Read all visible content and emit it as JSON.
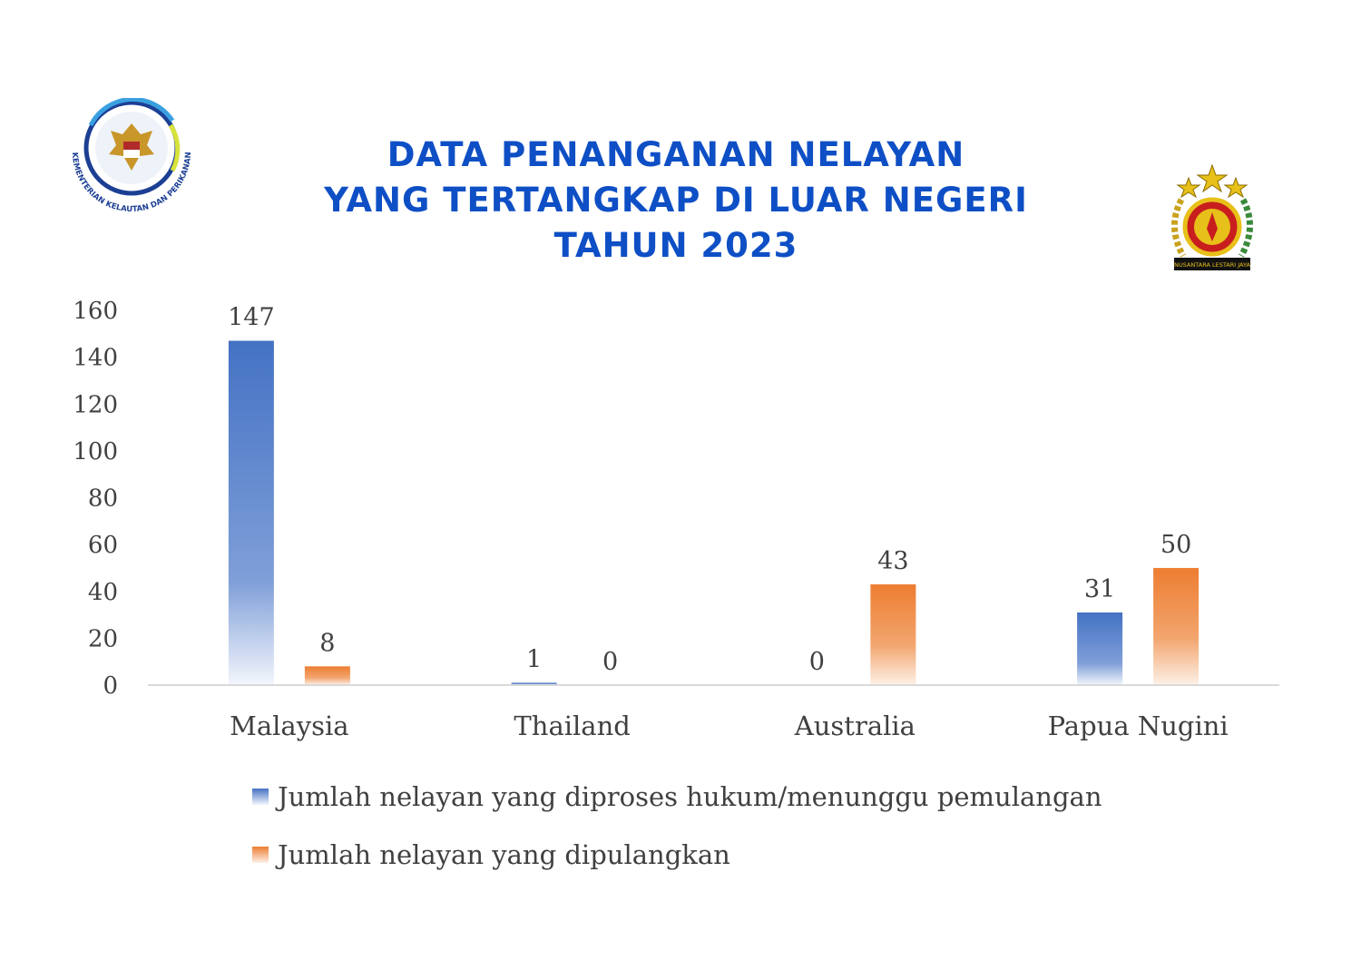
{
  "title_lines": [
    "DATA PENANGANAN NELAYAN",
    "YANG TERTANGKAP DI LUAR NEGERI",
    "TAHUN 2023"
  ],
  "logos": {
    "left": {
      "name": "kkp-logo",
      "text": "KEMENTERIAN KELAUTAN DAN PERIKANAN"
    },
    "right": {
      "name": "army-emblem-logo",
      "text": "NUSANTARA LESTARI JAYA"
    }
  },
  "colors": {
    "blue": "#4472c4",
    "orange": "#ed7d31",
    "title": "#0e4fc5"
  },
  "chart_data": {
    "type": "bar",
    "categories": [
      "Malaysia",
      "Thailand",
      "Australia",
      "Papua Nugini"
    ],
    "series": [
      {
        "name": "Jumlah nelayan yang diproses hukum/menunggu pemulangan",
        "values": [
          147,
          1,
          0,
          31
        ],
        "color": "#4472c4"
      },
      {
        "name": "Jumlah nelayan yang dipulangkan",
        "values": [
          8,
          0,
          43,
          50
        ],
        "color": "#ed7d31"
      }
    ],
    "ylim": [
      0,
      160
    ],
    "yticks": [
      0,
      20,
      40,
      60,
      80,
      100,
      120,
      140,
      160
    ],
    "data_labels": true,
    "grid": false,
    "legend_position": "bottom"
  }
}
